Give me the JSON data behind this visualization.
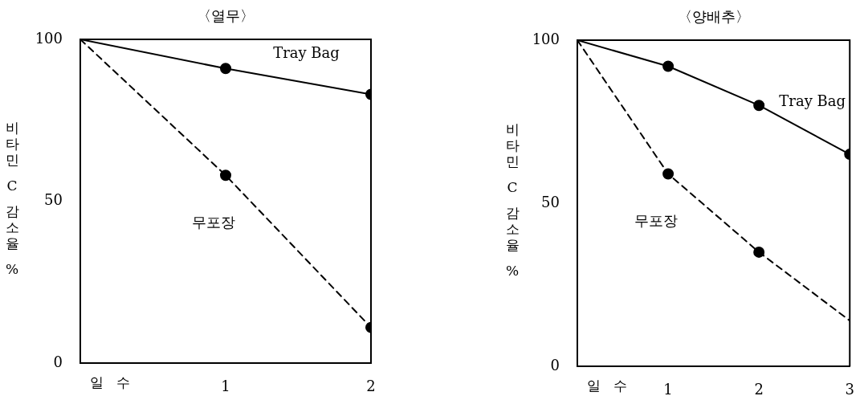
{
  "chart_data": [
    {
      "type": "line",
      "title": "〈열무〉",
      "xlabel": "일 수",
      "ylabel": "비타민 C 감소율 %",
      "xlim": [
        0,
        2
      ],
      "xticks": [
        1,
        2
      ],
      "ylim": [
        0,
        100
      ],
      "yticks": [
        0,
        50,
        100
      ],
      "grid": false,
      "legend": false,
      "series": [
        {
          "name": "Tray Bag",
          "type": "line",
          "color": "#000000",
          "line_style": "solid",
          "marker": "none",
          "x": [
            0,
            1,
            2
          ],
          "values": [
            100,
            91,
            83
          ]
        },
        {
          "name": "무포장",
          "type": "line",
          "color": "#000000",
          "line_style": "dashed",
          "marker": "none",
          "x": [
            0,
            1,
            2
          ],
          "values": [
            100,
            58,
            11
          ]
        },
        {
          "type": "scatter",
          "color": "#000000",
          "marker": "circle",
          "x": [
            1,
            2
          ],
          "values": [
            91,
            83
          ]
        },
        {
          "type": "scatter",
          "color": "#000000",
          "marker": "circle",
          "x": [
            1,
            2
          ],
          "values": [
            58,
            11
          ]
        }
      ]
    },
    {
      "type": "line",
      "title": "〈양배추〉",
      "xlabel": "일 수",
      "ylabel": "비타민 C 감소율 %",
      "xlim": [
        0,
        3
      ],
      "xticks": [
        1,
        2,
        3
      ],
      "ylim": [
        0,
        100
      ],
      "yticks": [
        0,
        50,
        100
      ],
      "grid": false,
      "legend": false,
      "series": [
        {
          "name": "Tray Bag",
          "type": "line",
          "color": "#000000",
          "line_style": "solid",
          "marker": "none",
          "x": [
            0,
            1,
            2,
            3
          ],
          "values": [
            100,
            92,
            80,
            65
          ]
        },
        {
          "name": "무포장",
          "type": "line",
          "color": "#000000",
          "line_style": "dashed",
          "marker": "none",
          "x": [
            0,
            1,
            2,
            3
          ],
          "values": [
            100,
            59,
            35,
            14
          ]
        },
        {
          "type": "scatter",
          "color": "#000000",
          "marker": "circle",
          "x": [
            1,
            2,
            3
          ],
          "values": [
            92,
            80,
            65
          ]
        },
        {
          "type": "scatter",
          "color": "#000000",
          "marker": "circle",
          "x": [
            1,
            2
          ],
          "values": [
            59,
            35
          ]
        }
      ]
    }
  ]
}
